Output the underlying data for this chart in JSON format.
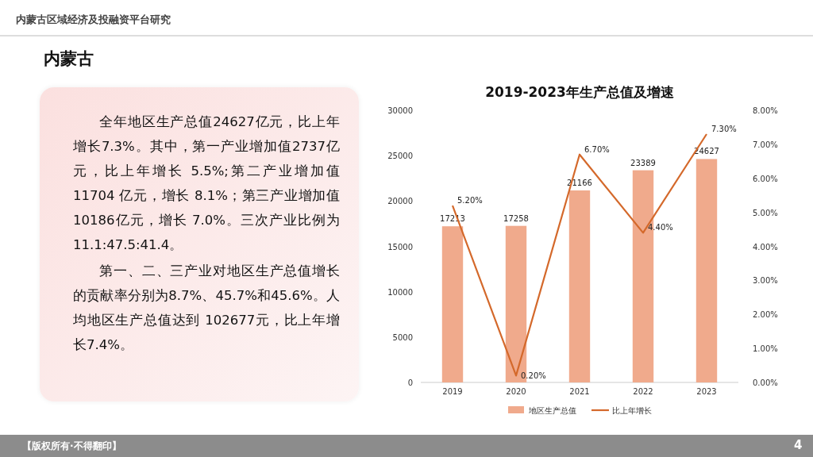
{
  "chart_data": [
    {
      "type": "other",
      "title": "内蒙古",
      "annotations": [
        "内蒙古区域经济及投融资平台研究",
        "全年地区生产总值24627亿元，比上年增长7.3%。其中，第一产业增加值2737亿元，比上年增长 5.5%;第二产业增加值11704 亿元，增长 8.1%；第三产业增加值10186亿元，增长 7.0%。三次产业比例为11.1:47.5:41.4。",
        "第一、二、三产业对地区生产总值增长的贡献率分别为8.7%、45.7%和45.6%。人均地区生产总值达到 102677元，比上年增长7.4%。",
        "【版权所有·不得翻印】",
        "4"
      ]
    },
    {
      "type": "bar",
      "title": "2019-2023年生产总值及增速",
      "categories": [
        "2019",
        "2020",
        "2021",
        "2022",
        "2023"
      ],
      "series": [
        {
          "name": "地区生产总值",
          "type": "bar",
          "color": "#f0aa8c",
          "values": [
            17213,
            17258,
            21166,
            23389,
            24627
          ],
          "value_labels": [
            "17213",
            "17258",
            "21166",
            "23389",
            "24627"
          ]
        },
        {
          "name": "比上年增长",
          "type": "line",
          "axis": "y2",
          "color": "#d4692b",
          "values": [
            5.2,
            0.2,
            6.7,
            4.4,
            7.3
          ],
          "value_labels": [
            "5.20%",
            "0.20%",
            "6.70%",
            "4.40%",
            "7.30%"
          ]
        }
      ],
      "ylim": [
        0,
        30000
      ],
      "yticks": [
        0,
        5000,
        10000,
        15000,
        20000,
        25000,
        30000
      ],
      "y2lim": [
        0,
        8
      ],
      "y2ticks": [
        {
          "value": 0,
          "label": "0.00%"
        },
        {
          "value": 1,
          "label": "1.00%"
        },
        {
          "value": 2,
          "label": "2.00%"
        },
        {
          "value": 3,
          "label": "3.00%"
        },
        {
          "value": 4,
          "label": "4.00%"
        },
        {
          "value": 5,
          "label": "5.00%"
        },
        {
          "value": 6,
          "label": "6.00%"
        },
        {
          "value": 7,
          "label": "7.00%"
        },
        {
          "value": 8,
          "label": "8.00%"
        }
      ],
      "grid": false,
      "legend": "bottom",
      "marker": "none",
      "line_style": "solid"
    }
  ]
}
